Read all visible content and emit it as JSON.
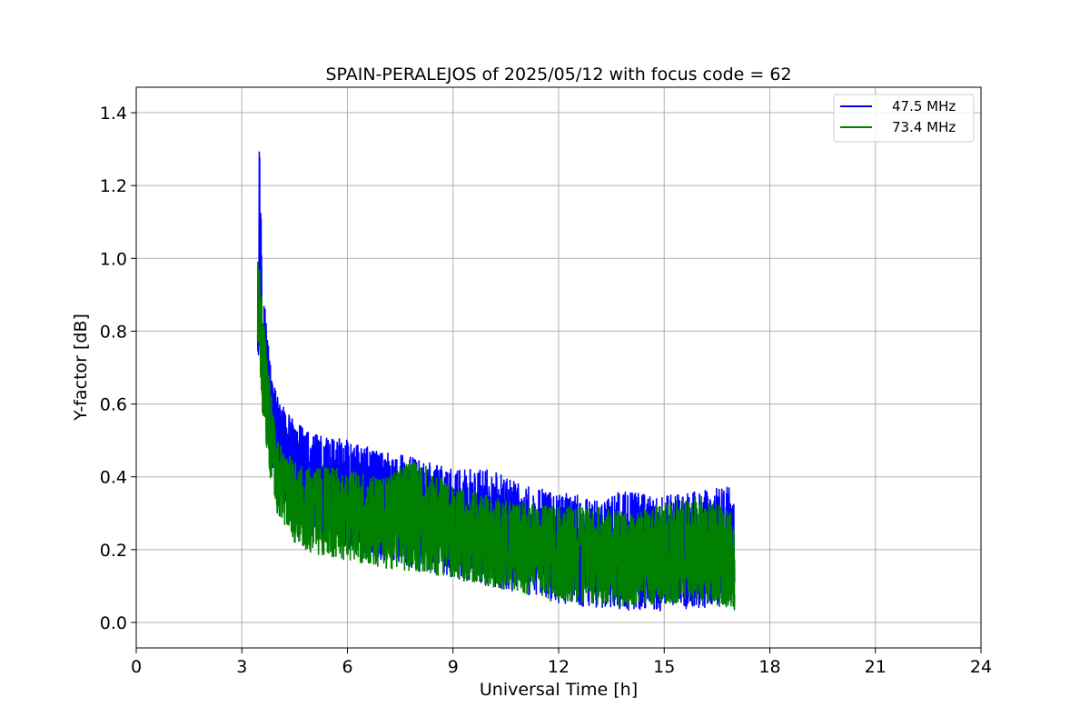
{
  "chart_data": {
    "type": "line",
    "title": "SPAIN-PERALEJOS of 2025/05/12 with focus code = 62",
    "xlabel": "Universal Time [h]",
    "ylabel": "Y-factor [dB]",
    "xlim": [
      0,
      24
    ],
    "ylim": [
      -0.07,
      1.47
    ],
    "x_ticks": [
      0,
      3,
      6,
      9,
      12,
      15,
      18,
      21,
      24
    ],
    "x_tick_labels": [
      "0",
      "3",
      "6",
      "9",
      "12",
      "15",
      "18",
      "21",
      "24"
    ],
    "y_ticks": [
      0.0,
      0.2,
      0.4,
      0.6,
      0.8,
      1.0,
      1.2,
      1.4
    ],
    "y_tick_labels": [
      "0.0",
      "0.2",
      "0.4",
      "0.6",
      "0.8",
      "1.0",
      "1.2",
      "1.4"
    ],
    "grid": true,
    "legend_position": "top-right",
    "series": [
      {
        "name": "47.5 MHz",
        "color": "#0000ff",
        "envelope": {
          "x": [
            3.45,
            3.5,
            3.6,
            3.8,
            4.0,
            4.5,
            5.0,
            6.0,
            7.0,
            8.0,
            9.0,
            10.0,
            11.0,
            12.0,
            13.0,
            14.0,
            15.0,
            16.0,
            17.0
          ],
          "high": [
            1.0,
            1.4,
            0.95,
            0.72,
            0.62,
            0.55,
            0.52,
            0.5,
            0.47,
            0.45,
            0.42,
            0.42,
            0.38,
            0.36,
            0.34,
            0.37,
            0.35,
            0.36,
            0.38
          ],
          "low": [
            0.73,
            0.72,
            0.6,
            0.45,
            0.35,
            0.28,
            0.24,
            0.2,
            0.17,
            0.14,
            0.12,
            0.1,
            0.08,
            0.05,
            0.04,
            0.03,
            0.03,
            0.04,
            0.05
          ]
        }
      },
      {
        "name": "73.4 MHz",
        "color": "#008000",
        "envelope": {
          "x": [
            3.45,
            3.5,
            3.6,
            3.8,
            4.0,
            4.5,
            5.0,
            6.0,
            7.0,
            8.0,
            9.0,
            10.0,
            11.0,
            12.0,
            13.0,
            14.0,
            15.0,
            16.0,
            17.0
          ],
          "high": [
            1.02,
            0.98,
            0.85,
            0.65,
            0.5,
            0.44,
            0.43,
            0.42,
            0.4,
            0.45,
            0.37,
            0.35,
            0.33,
            0.32,
            0.32,
            0.3,
            0.33,
            0.35,
            0.3
          ],
          "low": [
            0.7,
            0.68,
            0.55,
            0.4,
            0.3,
            0.22,
            0.19,
            0.17,
            0.15,
            0.14,
            0.12,
            0.1,
            0.08,
            0.06,
            0.05,
            0.04,
            0.05,
            0.06,
            0.03
          ]
        }
      }
    ]
  }
}
